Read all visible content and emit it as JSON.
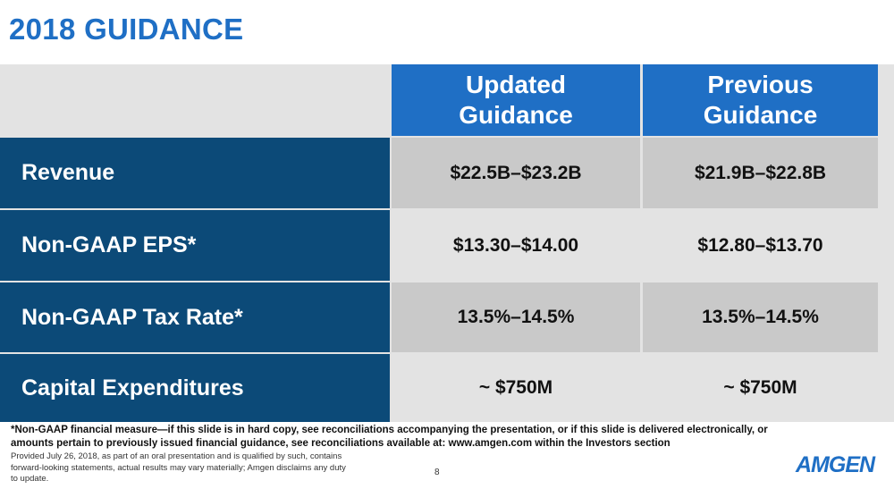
{
  "title": "2018 GUIDANCE",
  "table": {
    "headers": [
      "Updated Guidance",
      "Previous Guidance"
    ],
    "header_lines": [
      [
        "Updated",
        "Guidance"
      ],
      [
        "Previous",
        "Guidance"
      ]
    ],
    "rows": [
      {
        "label": "Revenue",
        "updated": "$22.5B–$23.2B",
        "previous": "$21.9B–$22.8B"
      },
      {
        "label": "Non-GAAP EPS*",
        "updated": "$13.30–$14.00",
        "previous": "$12.80–$13.70"
      },
      {
        "label": "Non-GAAP Tax Rate*",
        "updated": "13.5%–14.5%",
        "previous": "13.5%–14.5%"
      },
      {
        "label": "Capital Expenditures",
        "updated": "~ $750M",
        "previous": "~ $750M"
      }
    ]
  },
  "footnote_line1": "*Non-GAAP financial measure—if this slide is in hard copy, see reconciliations accompanying the presentation, or if this slide is delivered electronically, or",
  "footnote_line2": "amounts pertain to previously issued financial guidance, see reconciliations available at: www.amgen.com within the Investors section",
  "disclaimer": "Provided July 26, 2018, as part of an oral presentation and is qualified by such, contains forward-looking statements, actual results may vary materially; Amgen disclaims any duty to update.",
  "page_number": "8",
  "logo_text": "AMGEN",
  "colors": {
    "accent": "#1f6fc5",
    "row_label_bg": "#0c4a78",
    "cell_dark": "#c9c9c9",
    "cell_light": "#e3e3e3"
  }
}
